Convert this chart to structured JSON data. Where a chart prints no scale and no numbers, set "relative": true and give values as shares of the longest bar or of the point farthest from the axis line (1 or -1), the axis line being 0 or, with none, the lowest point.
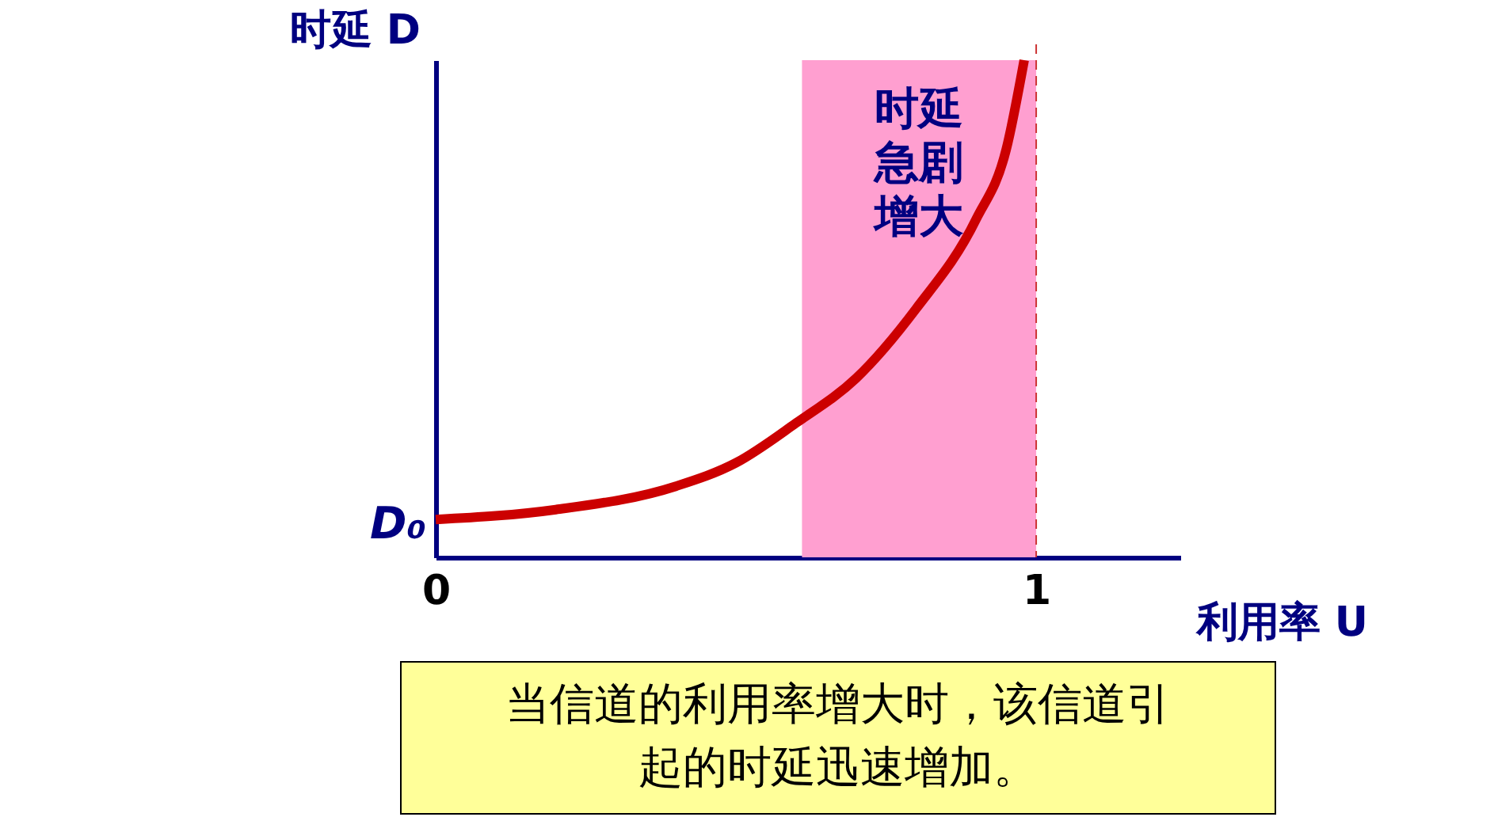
{
  "chart_data": {
    "type": "line",
    "relative": true,
    "xlabel": "利用率 U",
    "ylabel": "时延 D",
    "x": [
      0,
      0.2,
      0.4,
      0.5,
      0.6,
      0.7,
      0.8,
      0.9,
      0.95,
      0.98
    ],
    "series": [
      {
        "color": "#cc0000",
        "values": [
          0.076,
          0.096,
          0.143,
          0.19,
          0.27,
          0.36,
          0.5,
          0.68,
          0.82,
          1.0
        ]
      }
    ],
    "xlim": [
      0,
      1.24
    ],
    "xticks": [
      0,
      1
    ],
    "grid": false,
    "marker": "none",
    "line_style": "solid",
    "tick_labels": "x",
    "bands": [
      {
        "axis": "x",
        "from": 0.61,
        "to": 1,
        "label": "时延急剧增大",
        "color": "#ff9fd0"
      }
    ],
    "ref_lines": [
      {
        "axis": "x",
        "value": 1,
        "color": "#cc3333",
        "line_style": "dashed"
      }
    ],
    "annotations": [
      {
        "text": "D₀",
        "x": 0,
        "y": 0.076
      },
      "当信道的利用率增大时，该信道引起的时延迅速增加。"
    ]
  }
}
